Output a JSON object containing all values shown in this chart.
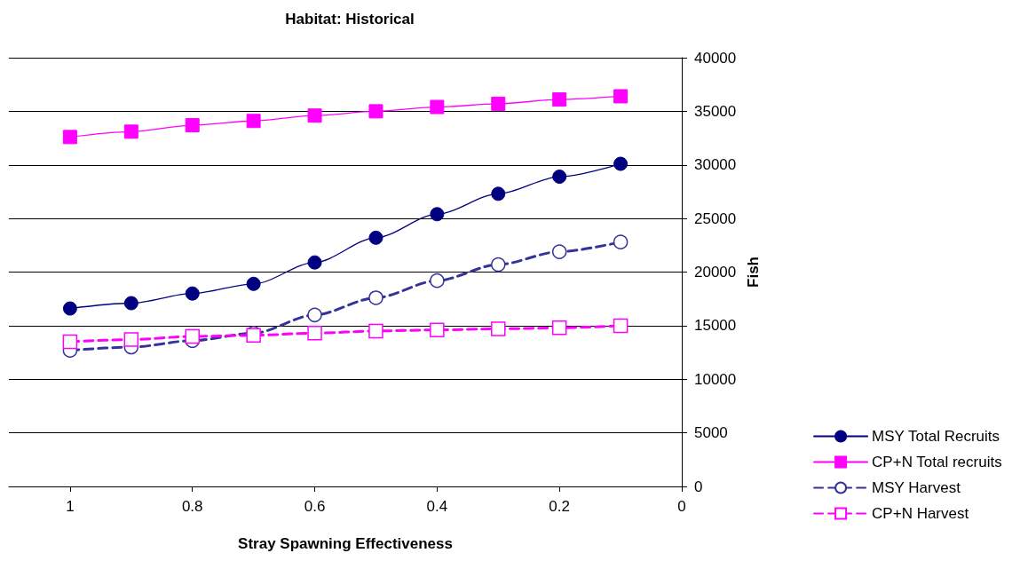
{
  "chart_data": {
    "type": "line",
    "title": "Habitat: Historical",
    "xlabel": "Stray Spawning Effectiveness",
    "ylabel": "Fish",
    "x": [
      1,
      0.9,
      0.8,
      0.7,
      0.6,
      0.5,
      0.4,
      0.3,
      0.2,
      0.1
    ],
    "series": [
      {
        "name": "MSY Total Recruits",
        "color": "#000080",
        "marker": "circle",
        "line_style": "solid",
        "values": [
          16600,
          17100,
          18000,
          18900,
          20900,
          23200,
          25400,
          27300,
          28900,
          30100
        ]
      },
      {
        "name": "CP+N Total recruits",
        "color": "#ff00ff",
        "marker": "square",
        "line_style": "solid",
        "values": [
          32600,
          33100,
          33700,
          34100,
          34600,
          35000,
          35400,
          35700,
          36100,
          36400
        ]
      },
      {
        "name": "MSY Harvest",
        "color": "#333399",
        "marker": "circle",
        "line_style": "dashed",
        "values": [
          12700,
          13000,
          13600,
          14300,
          16000,
          17600,
          19200,
          20700,
          21900,
          22800
        ]
      },
      {
        "name": "CP+N Harvest",
        "color": "#ff00ff",
        "marker": "square",
        "line_style": "dashed",
        "values": [
          13500,
          13700,
          14000,
          14100,
          14300,
          14500,
          14600,
          14700,
          14800,
          15000
        ]
      }
    ],
    "xlim": [
      1.1,
      0
    ],
    "xticks": [
      1,
      0.8,
      0.6,
      0.4,
      0.2,
      0
    ],
    "ylim": [
      0,
      40000
    ],
    "yticks": [
      0,
      5000,
      10000,
      15000,
      20000,
      25000,
      30000,
      35000,
      40000
    ],
    "grid": "y",
    "legend": "right"
  }
}
